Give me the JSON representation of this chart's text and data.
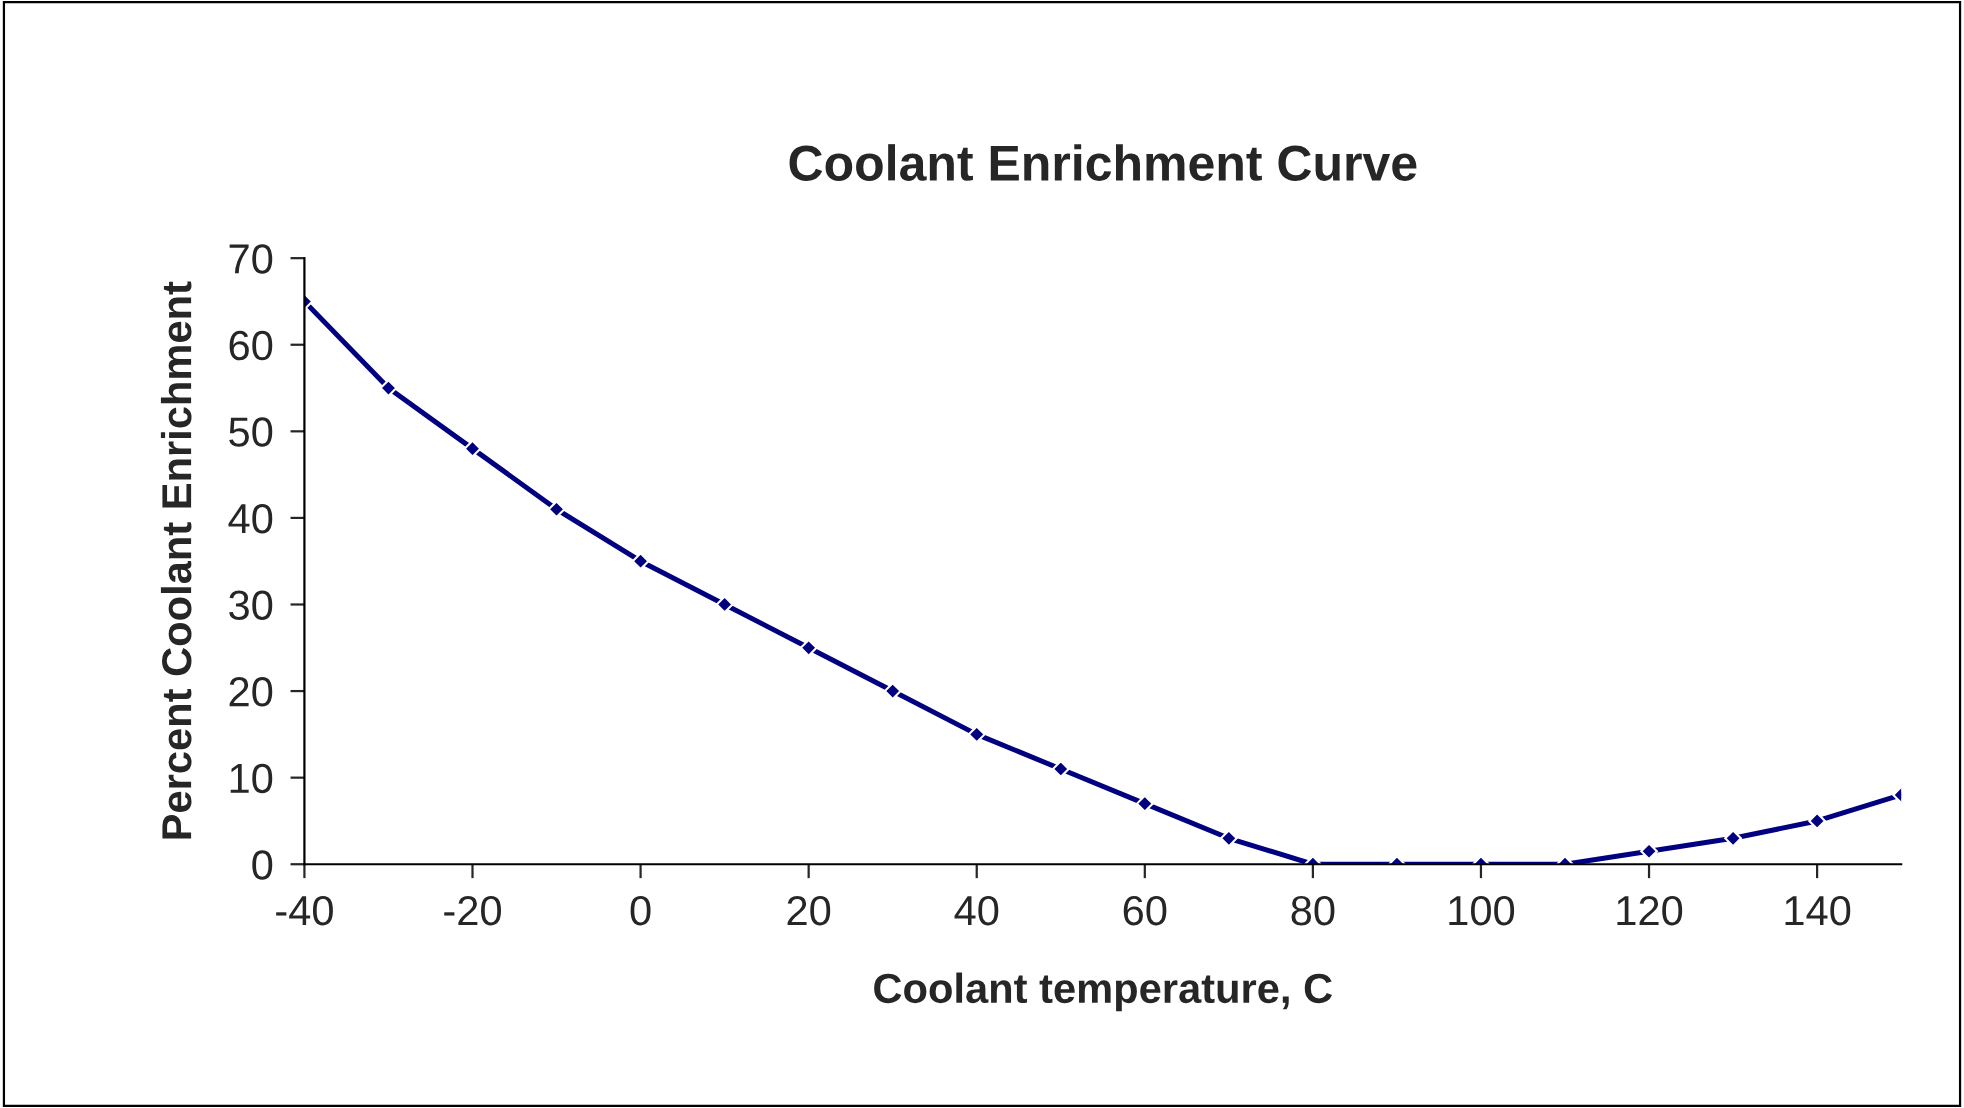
{
  "chart_data": {
    "type": "line",
    "title": "Coolant Enrichment Curve",
    "xlabel": "Coolant temperature, C",
    "ylabel": "Percent Coolant Enrichment",
    "x": [
      -40,
      -30,
      -20,
      -10,
      0,
      10,
      20,
      30,
      40,
      50,
      60,
      70,
      80,
      90,
      100,
      110,
      120,
      130,
      140,
      150
    ],
    "series": [
      {
        "color": "#000080",
        "values": [
          65,
          55,
          48,
          41,
          35,
          30,
          25,
          20,
          15,
          11,
          7,
          3,
          0,
          0,
          0,
          0,
          1.5,
          3,
          5,
          8
        ]
      }
    ],
    "xlim": [
      -40,
      150
    ],
    "xticks": [
      -40,
      -20,
      0,
      20,
      40,
      60,
      80,
      100,
      120,
      140
    ],
    "ylim": [
      0,
      70
    ],
    "yticks": [
      0,
      10,
      20,
      30,
      40,
      50,
      60,
      70
    ],
    "grid": false,
    "legend": false,
    "marker": "diamond",
    "line_style": "solid"
  }
}
